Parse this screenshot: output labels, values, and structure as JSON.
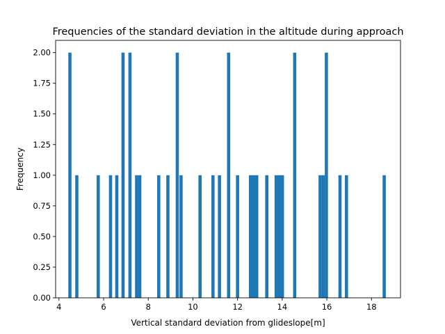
{
  "chart_data": {
    "type": "bar",
    "title": "Frequencies of the standard deviation in the altitude during approach",
    "xlabel": "Vertical standard deviation from glideslope[m]",
    "ylabel": "Frequency",
    "xlim": [
      3.85,
      19.3
    ],
    "ylim": [
      0,
      2.1
    ],
    "bin_width": 0.1425,
    "x_ticks": [
      4,
      6,
      8,
      10,
      12,
      14,
      16,
      18
    ],
    "y_ticks": [
      0.0,
      0.25,
      0.5,
      0.75,
      1.0,
      1.25,
      1.5,
      1.75,
      2.0
    ],
    "x_tick_labels": [
      "4",
      "6",
      "8",
      "10",
      "12",
      "14",
      "16",
      "18"
    ],
    "y_tick_labels": [
      "0.00",
      "0.25",
      "0.50",
      "0.75",
      "1.00",
      "1.25",
      "1.50",
      "1.75",
      "2.00"
    ],
    "grid": false,
    "bar_color": "#1f77b4",
    "bins": [
      {
        "x": 4.49,
        "count": 2
      },
      {
        "x": 4.8,
        "count": 1
      },
      {
        "x": 5.76,
        "count": 1
      },
      {
        "x": 6.31,
        "count": 1
      },
      {
        "x": 6.59,
        "count": 1
      },
      {
        "x": 6.87,
        "count": 2
      },
      {
        "x": 7.18,
        "count": 2
      },
      {
        "x": 7.48,
        "count": 1
      },
      {
        "x": 7.62,
        "count": 1
      },
      {
        "x": 8.47,
        "count": 1
      },
      {
        "x": 8.88,
        "count": 1
      },
      {
        "x": 9.3,
        "count": 2
      },
      {
        "x": 9.47,
        "count": 1
      },
      {
        "x": 10.32,
        "count": 1
      },
      {
        "x": 10.9,
        "count": 1
      },
      {
        "x": 11.19,
        "count": 1
      },
      {
        "x": 11.6,
        "count": 2
      },
      {
        "x": 12.0,
        "count": 1
      },
      {
        "x": 12.58,
        "count": 1
      },
      {
        "x": 12.72,
        "count": 1
      },
      {
        "x": 12.86,
        "count": 1
      },
      {
        "x": 13.31,
        "count": 1
      },
      {
        "x": 13.73,
        "count": 1
      },
      {
        "x": 13.87,
        "count": 1
      },
      {
        "x": 14.01,
        "count": 1
      },
      {
        "x": 14.56,
        "count": 2
      },
      {
        "x": 15.7,
        "count": 1
      },
      {
        "x": 15.84,
        "count": 1
      },
      {
        "x": 15.98,
        "count": 2
      },
      {
        "x": 16.59,
        "count": 1
      },
      {
        "x": 16.88,
        "count": 1
      },
      {
        "x": 18.57,
        "count": 1
      }
    ]
  }
}
